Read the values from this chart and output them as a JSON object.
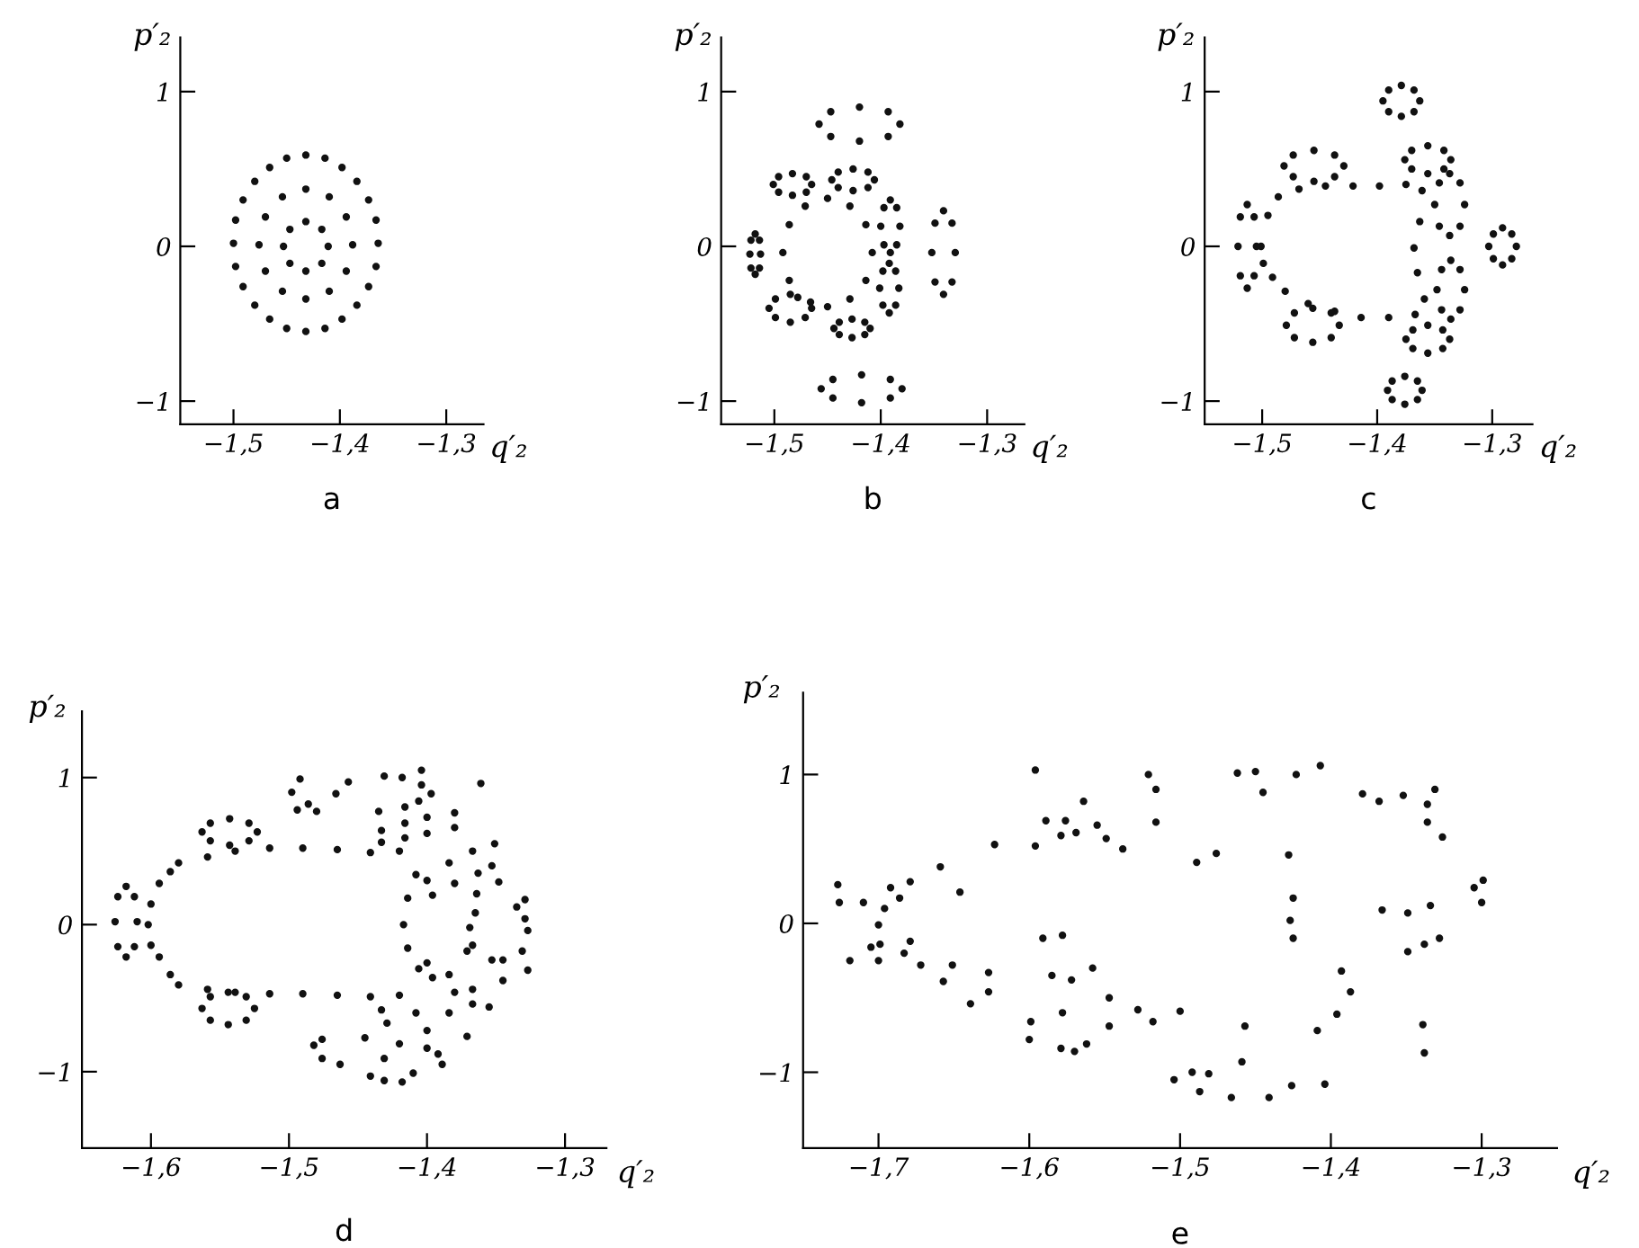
{
  "chart_data": [
    {
      "type": "scatter",
      "marker": "circle",
      "xlabel": "q′₂",
      "ylabel": "p′₂",
      "annotations": [
        "a"
      ],
      "xlim": [
        -1.55,
        -1.265
      ],
      "ylim": [
        -1.15,
        1.35
      ],
      "xticks": [
        {
          "value": -1.5,
          "label": "−1,5"
        },
        {
          "value": -1.4,
          "label": "−1,4"
        },
        {
          "value": -1.3,
          "label": "−1,3"
        }
      ],
      "yticks": [
        -1,
        0,
        1
      ],
      "series": [
        {
          "color": "#111111",
          "x": [
            -1.364,
            -1.366,
            -1.373,
            -1.384,
            -1.398,
            -1.414,
            -1.432,
            -1.45,
            -1.466,
            -1.48,
            -1.491,
            -1.498,
            -1.5,
            -1.498,
            -1.491,
            -1.48,
            -1.466,
            -1.45,
            -1.432,
            -1.414,
            -1.398,
            -1.384,
            -1.373,
            -1.366
          ],
          "values": [
            0.02,
            0.17,
            0.3,
            0.42,
            0.51,
            0.57,
            0.59,
            0.57,
            0.51,
            0.42,
            0.3,
            0.17,
            0.02,
            -0.13,
            -0.26,
            -0.38,
            -0.47,
            -0.53,
            -0.55,
            -0.53,
            -0.47,
            -0.38,
            -0.26,
            -0.13
          ]
        },
        {
          "color": "#111111",
          "x": [
            -1.388,
            -1.394,
            -1.41,
            -1.432,
            -1.454,
            -1.47,
            -1.476,
            -1.47,
            -1.454,
            -1.432,
            -1.41,
            -1.394
          ],
          "values": [
            0.01,
            0.19,
            0.32,
            0.37,
            0.32,
            0.19,
            0.01,
            -0.16,
            -0.29,
            -0.34,
            -0.29,
            -0.16
          ]
        },
        {
          "color": "#111111",
          "x": [
            -1.411,
            -1.417,
            -1.432,
            -1.447,
            -1.453,
            -1.447,
            -1.432,
            -1.417
          ],
          "values": [
            0,
            0.11,
            0.16,
            0.11,
            0,
            -0.11,
            -0.16,
            -0.11
          ]
        }
      ]
    },
    {
      "type": "scatter",
      "marker": "circle",
      "xlabel": "q′₂",
      "ylabel": "p′₂",
      "annotations": [
        "b"
      ],
      "xlim": [
        -1.55,
        -1.265
      ],
      "ylim": [
        -1.15,
        1.35
      ],
      "xticks": [
        {
          "value": -1.5,
          "label": "−1,5"
        },
        {
          "value": -1.4,
          "label": "−1,4"
        },
        {
          "value": -1.3,
          "label": "−1,3"
        }
      ],
      "yticks": [
        -1,
        0,
        1
      ],
      "series": [
        {
          "color": "#111111",
          "x": [
            -1.382,
            -1.393,
            -1.42,
            -1.447,
            -1.458,
            -1.447,
            -1.42,
            -1.393
          ],
          "values": [
            0.79,
            0.87,
            0.9,
            0.87,
            0.79,
            0.71,
            0.68,
            0.71
          ]
        },
        {
          "color": "#111111",
          "x": [
            -1.38,
            -1.391,
            -1.418,
            -1.445,
            -1.456,
            -1.445,
            -1.418,
            -1.391
          ],
          "values": [
            -0.92,
            -0.86,
            -0.83,
            -0.86,
            -0.92,
            -0.98,
            -1.01,
            -0.98
          ]
        },
        {
          "color": "#111111",
          "x": [
            -1.33,
            -1.333,
            -1.341,
            -1.349,
            -1.352,
            -1.349,
            -1.341,
            -1.333
          ],
          "values": [
            -0.04,
            0.15,
            0.23,
            0.15,
            -0.04,
            -0.23,
            -0.31,
            -0.23
          ]
        },
        {
          "color": "#111111",
          "x": [
            -1.406,
            -1.412,
            -1.426,
            -1.44,
            -1.446,
            -1.44,
            -1.426,
            -1.412
          ],
          "values": [
            0.43,
            0.48,
            0.5,
            0.48,
            0.43,
            0.38,
            0.36,
            0.38
          ]
        },
        {
          "color": "#111111",
          "x": [
            -1.41,
            -1.415,
            -1.427,
            -1.439,
            -1.444,
            -1.439,
            -1.427,
            -1.415
          ],
          "values": [
            -0.53,
            -0.49,
            -0.47,
            -0.49,
            -0.53,
            -0.57,
            -0.59,
            -0.57
          ]
        },
        {
          "color": "#111111",
          "x": [
            -1.382,
            -1.385,
            -1.391,
            -1.397,
            -1.4,
            -1.397,
            -1.391,
            -1.385
          ],
          "values": [
            0.13,
            0.25,
            0.3,
            0.25,
            0.13,
            0.01,
            -0.04,
            0.01
          ]
        },
        {
          "color": "#111111",
          "x": [
            -1.383,
            -1.386,
            -1.392,
            -1.398,
            -1.401,
            -1.398,
            -1.392,
            -1.386
          ],
          "values": [
            -0.27,
            -0.16,
            -0.11,
            -0.16,
            -0.27,
            -0.38,
            -0.43,
            -0.38
          ]
        },
        {
          "color": "#111111",
          "x": [
            -1.408,
            -1.414,
            -1.429,
            -1.45,
            -1.471,
            -1.486,
            -1.492,
            -1.486,
            -1.466,
            -1.45,
            -1.429,
            -1.414
          ],
          "values": [
            -0.04,
            0.14,
            0.26,
            0.31,
            0.26,
            0.14,
            -0.04,
            -0.22,
            -0.36,
            -0.39,
            -0.34,
            -0.22
          ]
        },
        {
          "color": "#111111",
          "x": [
            -1.465,
            -1.47,
            -1.483,
            -1.496,
            -1.501,
            -1.496,
            -1.483,
            -1.47
          ],
          "values": [
            0.4,
            0.45,
            0.47,
            0.45,
            0.4,
            0.35,
            0.33,
            0.35
          ]
        },
        {
          "color": "#111111",
          "x": [
            -1.465,
            -1.478,
            -1.485,
            -1.499,
            -1.505,
            -1.499,
            -1.485,
            -1.471
          ],
          "values": [
            -0.4,
            -0.33,
            -0.31,
            -0.34,
            -0.4,
            -0.46,
            -0.49,
            -0.46
          ]
        },
        {
          "color": "#111111",
          "x": [
            -1.513,
            -1.514,
            -1.518,
            -1.522,
            -1.523,
            -1.522,
            -1.518,
            -1.514
          ],
          "values": [
            -0.05,
            0.04,
            0.08,
            0.04,
            -0.05,
            -0.14,
            -0.18,
            -0.14
          ]
        }
      ]
    },
    {
      "type": "scatter",
      "marker": "circle",
      "xlabel": "q′₂",
      "ylabel": "p′₂",
      "annotations": [
        "c"
      ],
      "xlim": [
        -1.55,
        -1.265
      ],
      "ylim": [
        -1.15,
        1.35
      ],
      "xticks": [
        {
          "value": -1.5,
          "label": "−1,5"
        },
        {
          "value": -1.4,
          "label": "−1,4"
        },
        {
          "value": -1.3,
          "label": "−1,3"
        }
      ],
      "yticks": [
        -1,
        0,
        1
      ],
      "series": [
        {
          "color": "#111111",
          "x": [
            -1.501,
            -1.495,
            -1.486,
            -1.468,
            -1.445,
            -1.421,
            -1.398,
            -1.375,
            -1.361,
            -1.363,
            -1.368,
            -1.365,
            -1.359,
            -1.367,
            -1.39,
            -1.414,
            -1.437,
            -1.46,
            -1.48,
            -1.491,
            -1.499
          ],
          "values": [
            0,
            0.2,
            0.32,
            0.37,
            0.39,
            0.39,
            0.39,
            0.4,
            0.36,
            0.16,
            -0.01,
            -0.17,
            -0.34,
            -0.44,
            -0.46,
            -0.46,
            -0.42,
            -0.37,
            -0.29,
            -0.2,
            -0.11
          ]
        },
        {
          "color": "#111111",
          "x": [
            -1.363,
            -1.368,
            -1.379,
            -1.39,
            -1.395,
            -1.39,
            -1.379,
            -1.368
          ],
          "values": [
            0.94,
            1.01,
            1.04,
            1.01,
            0.94,
            0.87,
            0.84,
            0.87
          ]
        },
        {
          "color": "#111111",
          "x": [
            -1.279,
            -1.283,
            -1.291,
            -1.299,
            -1.303,
            -1.299,
            -1.291,
            -1.283
          ],
          "values": [
            0,
            0.08,
            0.12,
            0.08,
            0,
            -0.08,
            -0.12,
            -0.08
          ]
        },
        {
          "color": "#111111",
          "x": [
            -1.361,
            -1.365,
            -1.376,
            -1.387,
            -1.391,
            -1.387,
            -1.376,
            -1.365
          ],
          "values": [
            -0.93,
            -0.87,
            -0.84,
            -0.87,
            -0.93,
            -0.99,
            -1.02,
            -0.99
          ]
        },
        {
          "color": "#111111",
          "x": [
            -1.505,
            -1.507,
            -1.513,
            -1.519,
            -1.521,
            -1.519,
            -1.513,
            -1.507
          ],
          "values": [
            0,
            0.19,
            0.27,
            0.19,
            0,
            -0.19,
            -0.27,
            -0.19
          ]
        },
        {
          "color": "#111111",
          "x": [
            -1.429,
            -1.437,
            -1.455,
            -1.473,
            -1.481,
            -1.473,
            -1.455,
            -1.437
          ],
          "values": [
            0.52,
            0.59,
            0.62,
            0.59,
            0.52,
            0.45,
            0.42,
            0.45
          ]
        },
        {
          "color": "#111111",
          "x": [
            -1.433,
            -1.44,
            -1.456,
            -1.472,
            -1.479,
            -1.472,
            -1.456,
            -1.44
          ],
          "values": [
            -0.51,
            -0.43,
            -0.4,
            -0.43,
            -0.51,
            -0.59,
            -0.62,
            -0.59
          ]
        },
        {
          "color": "#111111",
          "x": [
            -1.336,
            -1.342,
            -1.356,
            -1.37,
            -1.376,
            -1.37,
            -1.356,
            -1.342
          ],
          "values": [
            0.56,
            0.62,
            0.65,
            0.62,
            0.56,
            0.5,
            0.47,
            0.5
          ]
        },
        {
          "color": "#111111",
          "x": [
            -1.324,
            -1.328,
            -1.337,
            -1.346,
            -1.35,
            -1.346,
            -1.337,
            -1.328
          ],
          "values": [
            0.27,
            0.41,
            0.47,
            0.41,
            0.27,
            0.13,
            0.07,
            0.13
          ]
        },
        {
          "color": "#111111",
          "x": [
            -1.324,
            -1.328,
            -1.336,
            -1.344,
            -1.348,
            -1.344,
            -1.336,
            -1.328
          ],
          "values": [
            -0.28,
            -0.15,
            -0.09,
            -0.15,
            -0.28,
            -0.41,
            -0.47,
            -0.41
          ]
        },
        {
          "color": "#111111",
          "x": [
            -1.337,
            -1.343,
            -1.356,
            -1.369,
            -1.375,
            -1.369,
            -1.356,
            -1.343
          ],
          "values": [
            -0.6,
            -0.54,
            -0.51,
            -0.54,
            -0.6,
            -0.66,
            -0.69,
            -0.66
          ]
        }
      ]
    },
    {
      "type": "scatter",
      "marker": "circle",
      "xlabel": "q′₂",
      "ylabel": "p′₂",
      "annotations": [
        "d"
      ],
      "xlim": [
        -1.65,
        -1.27
      ],
      "ylim": [
        -1.52,
        1.45
      ],
      "xticks": [
        {
          "value": -1.6,
          "label": "−1,6"
        },
        {
          "value": -1.5,
          "label": "−1,5"
        },
        {
          "value": -1.4,
          "label": "−1,4"
        },
        {
          "value": -1.3,
          "label": "−1,3"
        }
      ],
      "yticks": [
        -1,
        0,
        1
      ],
      "series": [
        {
          "color": "#111111",
          "x": [
            -1.602,
            -1.6,
            -1.594,
            -1.586,
            -1.58,
            -1.559,
            -1.539,
            -1.514,
            -1.49,
            -1.465,
            -1.441,
            -1.42,
            -1.408,
            -1.414,
            -1.417,
            -1.414,
            -1.406,
            -1.42,
            -1.441,
            -1.465,
            -1.49,
            -1.514,
            -1.539,
            -1.559,
            -1.58,
            -1.586,
            -1.594,
            -1.6
          ],
          "values": [
            0,
            0.14,
            0.28,
            0.36,
            0.42,
            0.46,
            0.5,
            0.52,
            0.52,
            0.51,
            0.49,
            0.5,
            0.34,
            0.18,
            0,
            -0.16,
            -0.3,
            -0.48,
            -0.49,
            -0.48,
            -0.47,
            -0.47,
            -0.46,
            -0.44,
            -0.41,
            -0.34,
            -0.22,
            -0.14
          ]
        },
        {
          "color": "#111111",
          "x": [
            -1.61,
            -1.612,
            -1.618,
            -1.624,
            -1.626,
            -1.624,
            -1.618,
            -1.612
          ],
          "values": [
            0.02,
            0.19,
            0.26,
            0.19,
            0.02,
            -0.15,
            -0.22,
            -0.15
          ]
        },
        {
          "color": "#111111",
          "x": [
            -1.523,
            -1.529,
            -1.543,
            -1.557,
            -1.563,
            -1.557,
            -1.543,
            -1.529
          ],
          "values": [
            0.63,
            0.69,
            0.72,
            0.69,
            0.63,
            0.57,
            0.54,
            0.57
          ]
        },
        {
          "color": "#111111",
          "x": [
            -1.525,
            -1.531,
            -1.544,
            -1.557,
            -1.563,
            -1.557,
            -1.544,
            -1.531
          ],
          "values": [
            -0.57,
            -0.49,
            -0.46,
            -0.49,
            -0.57,
            -0.65,
            -0.68,
            -0.65
          ]
        },
        {
          "color": "#111111",
          "x": [
            -1.433,
            -1.416,
            -1.4,
            -1.38,
            -1.433,
            -1.416,
            -1.4,
            -1.38,
            -1.4,
            -1.384,
            -1.367,
            -1.351,
            -1.396,
            -1.38,
            -1.363,
            -1.353
          ],
          "values": [
            0.64,
            0.69,
            0.73,
            0.76,
            0.56,
            0.59,
            0.62,
            0.66,
            0.3,
            0.42,
            0.5,
            0.55,
            0.2,
            0.28,
            0.35,
            0.4
          ]
        },
        {
          "color": "#111111",
          "x": [
            -1.4,
            -1.384,
            -1.367,
            -1.355,
            -1.396,
            -1.38,
            -1.367,
            -1.433,
            -1.408,
            -1.384,
            -1.429,
            -1.4,
            -1.371
          ],
          "values": [
            -0.26,
            -0.34,
            -0.44,
            -0.56,
            -0.36,
            -0.46,
            -0.54,
            -0.58,
            -0.6,
            -0.6,
            -0.67,
            -0.72,
            -0.76
          ]
        },
        {
          "color": "#111111",
          "x": [
            -1.492,
            -1.457,
            -1.431,
            -1.418,
            -1.404,
            -1.361,
            -1.498,
            -1.466,
            -1.404,
            -1.397,
            -1.494,
            -1.486,
            -1.48,
            -1.435,
            -1.416,
            -1.406,
            -1.348,
            -1.364,
            -1.365,
            -1.369,
            -1.367,
            -1.371,
            -1.353,
            -1.345,
            -1.335,
            -1.329,
            -1.329,
            -1.327,
            -1.331,
            -1.327,
            -1.345
          ],
          "values": [
            0.99,
            0.97,
            1.01,
            1.0,
            1.05,
            0.96,
            0.9,
            0.89,
            0.95,
            0.89,
            0.78,
            0.82,
            0.77,
            0.77,
            0.8,
            0.84,
            0.29,
            0.21,
            0.08,
            -0.02,
            -0.14,
            -0.18,
            -0.24,
            -0.24,
            0.12,
            0.17,
            0.04,
            -0.04,
            -0.18,
            -0.31,
            -0.38
          ]
        },
        {
          "color": "#111111",
          "x": [
            -1.482,
            -1.476,
            -1.476,
            -1.463,
            -1.445,
            -1.431,
            -1.42,
            -1.4,
            -1.392,
            -1.389,
            -1.41,
            -1.441,
            -1.431,
            -1.418
          ],
          "values": [
            -0.82,
            -0.78,
            -0.91,
            -0.95,
            -0.77,
            -0.91,
            -0.81,
            -0.84,
            -0.88,
            -0.95,
            -1.01,
            -1.03,
            -1.06,
            -1.07
          ]
        }
      ]
    },
    {
      "type": "scatter",
      "marker": "circle",
      "xlabel": "q′₂",
      "ylabel": "p′₂",
      "annotations": [
        "e"
      ],
      "xlim": [
        -1.75,
        -1.25
      ],
      "ylim": [
        -1.51,
        1.55
      ],
      "xticks": [
        {
          "value": -1.7,
          "label": "−1,7"
        },
        {
          "value": -1.6,
          "label": "−1,6"
        },
        {
          "value": -1.5,
          "label": "−1,5"
        },
        {
          "value": -1.4,
          "label": "−1,4"
        },
        {
          "value": -1.3,
          "label": "−1,3"
        }
      ],
      "yticks": [
        -1,
        0,
        1
      ],
      "series": [
        {
          "color": "#111111",
          "x": [
            -1.727,
            -1.726,
            -1.71,
            -1.719,
            -1.7,
            -1.696,
            -1.692,
            -1.679,
            -1.686,
            -1.699,
            -1.705,
            -1.7,
            -1.683,
            -1.679,
            -1.672,
            -1.659,
            -1.657,
            -1.651,
            -1.646,
            -1.639,
            -1.627,
            -1.627,
            -1.623,
            -1.596,
            -1.596,
            -1.589,
            -1.576,
            -1.579,
            -1.569,
            -1.564,
            -1.555,
            -1.549,
            -1.538,
            -1.521,
            -1.516,
            -1.516,
            -1.591,
            -1.578,
            -1.585,
            -1.572,
            -1.558,
            -1.599,
            -1.6,
            -1.578,
            -1.579,
            -1.57,
            -1.562,
            -1.547,
            -1.547,
            -1.528
          ],
          "values": [
            0.26,
            0.14,
            0.14,
            -0.25,
            -0.01,
            0.1,
            0.24,
            0.28,
            0.17,
            -0.14,
            -0.16,
            -0.25,
            -0.2,
            -0.12,
            -0.28,
            0.38,
            -0.39,
            -0.28,
            0.21,
            -0.54,
            -0.33,
            -0.46,
            0.53,
            1.03,
            0.52,
            0.69,
            0.69,
            0.59,
            0.61,
            0.82,
            0.66,
            0.57,
            0.5,
            1.0,
            0.9,
            0.68,
            -0.1,
            -0.08,
            -0.35,
            -0.38,
            -0.3,
            -0.66,
            -0.78,
            -0.6,
            -0.84,
            -0.86,
            -0.81,
            -0.5,
            -0.69,
            -0.58
          ]
        },
        {
          "color": "#111111",
          "x": [
            -1.518,
            -1.5,
            -1.504,
            -1.492,
            -1.481,
            -1.487,
            -1.466,
            -1.459,
            -1.457,
            -1.489,
            -1.476,
            -1.462,
            -1.45,
            -1.445,
            -1.423,
            -1.407,
            -1.428,
            -1.425,
            -1.427,
            -1.425,
            -1.441,
            -1.426,
            -1.404,
            -1.409,
            -1.396,
            -1.393,
            -1.387,
            -1.379,
            -1.368,
            -1.352,
            -1.336,
            -1.331,
            -1.336,
            -1.326,
            -1.366,
            -1.349,
            -1.334,
            -1.349,
            -1.338,
            -1.328,
            -1.339,
            -1.338,
            -1.305,
            -1.299,
            -1.3
          ],
          "values": [
            -0.66,
            -0.59,
            -1.05,
            -1.0,
            -1.01,
            -1.13,
            -1.17,
            -0.93,
            -0.69,
            0.41,
            0.47,
            1.01,
            1.02,
            0.88,
            1.0,
            1.06,
            0.46,
            0.17,
            0.02,
            -0.1,
            -1.17,
            -1.09,
            -1.08,
            -0.72,
            -0.61,
            -0.32,
            -0.46,
            0.87,
            0.82,
            0.86,
            0.8,
            0.9,
            0.68,
            0.58,
            0.09,
            0.07,
            0.12,
            -0.19,
            -0.14,
            -0.1,
            -0.68,
            -0.87,
            0.24,
            0.29,
            0.14
          ]
        }
      ]
    }
  ]
}
